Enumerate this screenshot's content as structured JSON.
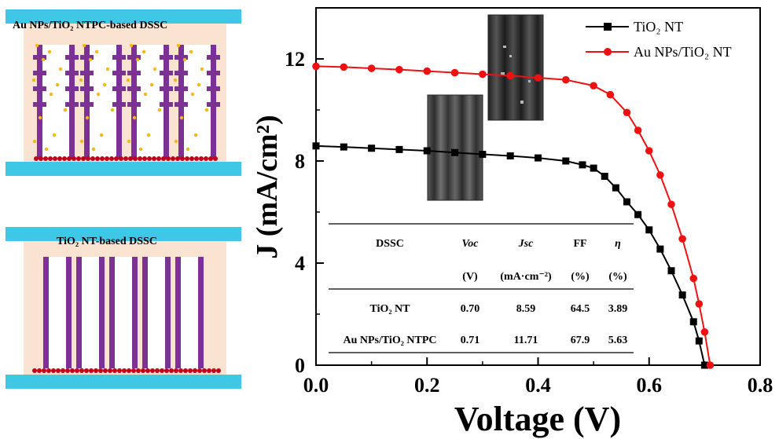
{
  "schematics": {
    "top_title": "Au NPs/TiO₂ NTPC-based DSSC",
    "bottom_title": "TiO₂ NT-based DSSC",
    "colors": {
      "electrode": "#3fc7e6",
      "electrolyte": "#fbe3d2",
      "nanotube": "#7b3294",
      "gold_np": "#f3b816",
      "dye_particle": "#c0001a"
    }
  },
  "chart_data": {
    "type": "line",
    "title": "",
    "xlabel": "Voltage (V)",
    "ylabel": "J (mA/cm²)",
    "xlim": [
      0,
      0.8
    ],
    "ylim": [
      0,
      14
    ],
    "xticks": [
      "0.0",
      "0.2",
      "0.4",
      "0.6",
      "0.8"
    ],
    "yticks": [
      "0",
      "4",
      "8",
      "12"
    ],
    "legend_position": "top-right",
    "series": [
      {
        "name": "TiO₂ NT",
        "color": "#000000",
        "marker": "square",
        "x": [
          0.0,
          0.05,
          0.1,
          0.15,
          0.2,
          0.25,
          0.3,
          0.35,
          0.4,
          0.45,
          0.48,
          0.5,
          0.52,
          0.54,
          0.56,
          0.58,
          0.6,
          0.62,
          0.64,
          0.66,
          0.68,
          0.69,
          0.7
        ],
        "y": [
          8.59,
          8.55,
          8.5,
          8.45,
          8.4,
          8.33,
          8.26,
          8.2,
          8.12,
          8.0,
          7.85,
          7.72,
          7.4,
          6.95,
          6.4,
          5.9,
          5.3,
          4.55,
          3.7,
          2.75,
          1.7,
          0.95,
          0.0
        ]
      },
      {
        "name": "Au NPs/TiO₂ NT",
        "color": "#ee1111",
        "marker": "circle",
        "x": [
          0.0,
          0.05,
          0.1,
          0.15,
          0.2,
          0.25,
          0.3,
          0.35,
          0.4,
          0.45,
          0.5,
          0.53,
          0.56,
          0.58,
          0.6,
          0.62,
          0.64,
          0.66,
          0.68,
          0.69,
          0.7,
          0.71
        ],
        "y": [
          11.71,
          11.68,
          11.63,
          11.58,
          11.52,
          11.46,
          11.4,
          11.34,
          11.26,
          11.18,
          10.95,
          10.6,
          9.9,
          9.2,
          8.4,
          7.45,
          6.3,
          4.95,
          3.4,
          2.4,
          1.3,
          0.0
        ]
      }
    ],
    "table": {
      "headers": [
        "DSSC",
        "Voc",
        "Jsc",
        "FF",
        "η"
      ],
      "units": [
        "",
        "(V)",
        "(mA·cm⁻²)",
        "(%)",
        "(%)"
      ],
      "rows": [
        [
          "TiO₂ NT",
          "0.70",
          "8.59",
          "64.5",
          "3.89"
        ],
        [
          "Au NPs/TiO₂ NTPC",
          "0.71",
          "11.71",
          "67.9",
          "5.63"
        ]
      ]
    },
    "insets": [
      {
        "name": "sem-image-tio2-nt"
      },
      {
        "name": "sem-image-au-tio2-ntpc"
      }
    ]
  }
}
